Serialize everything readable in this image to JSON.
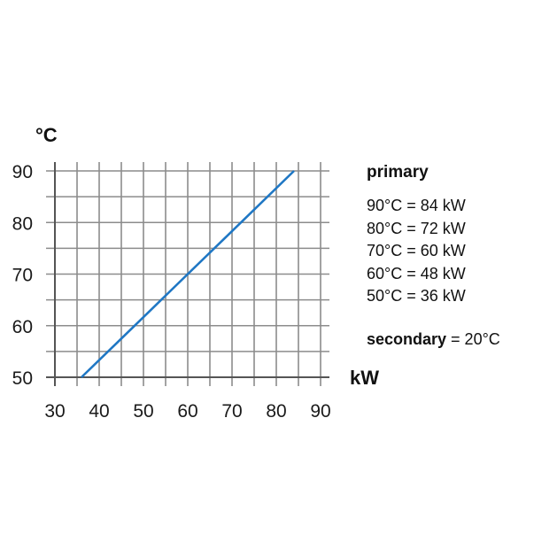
{
  "chart_data": {
    "type": "line",
    "xlabel": "kW",
    "ylabel": "°C",
    "xlim": [
      30,
      90
    ],
    "ylim": [
      50,
      90
    ],
    "x_ticks": [
      "30",
      "40",
      "50",
      "60",
      "70",
      "80",
      "90"
    ],
    "y_ticks": [
      "90",
      "80",
      "70",
      "60",
      "50"
    ],
    "grid": true,
    "series": [
      {
        "x": [
          36,
          48,
          60,
          72,
          84
        ],
        "y": [
          50,
          60,
          70,
          80,
          90
        ],
        "color": "#1f77c4"
      }
    ],
    "legend": {
      "title": "primary",
      "entries": [
        "90°C = 84 kW",
        "80°C = 72 kW",
        "70°C = 60 kW",
        "60°C = 48 kW",
        "50°C = 36 kW"
      ],
      "secondary_label": "secondary",
      "secondary_value": " = 20°C"
    }
  },
  "colors": {
    "grid": "#8c8c8c",
    "axis": "#555555",
    "line": "#1f77c4"
  }
}
